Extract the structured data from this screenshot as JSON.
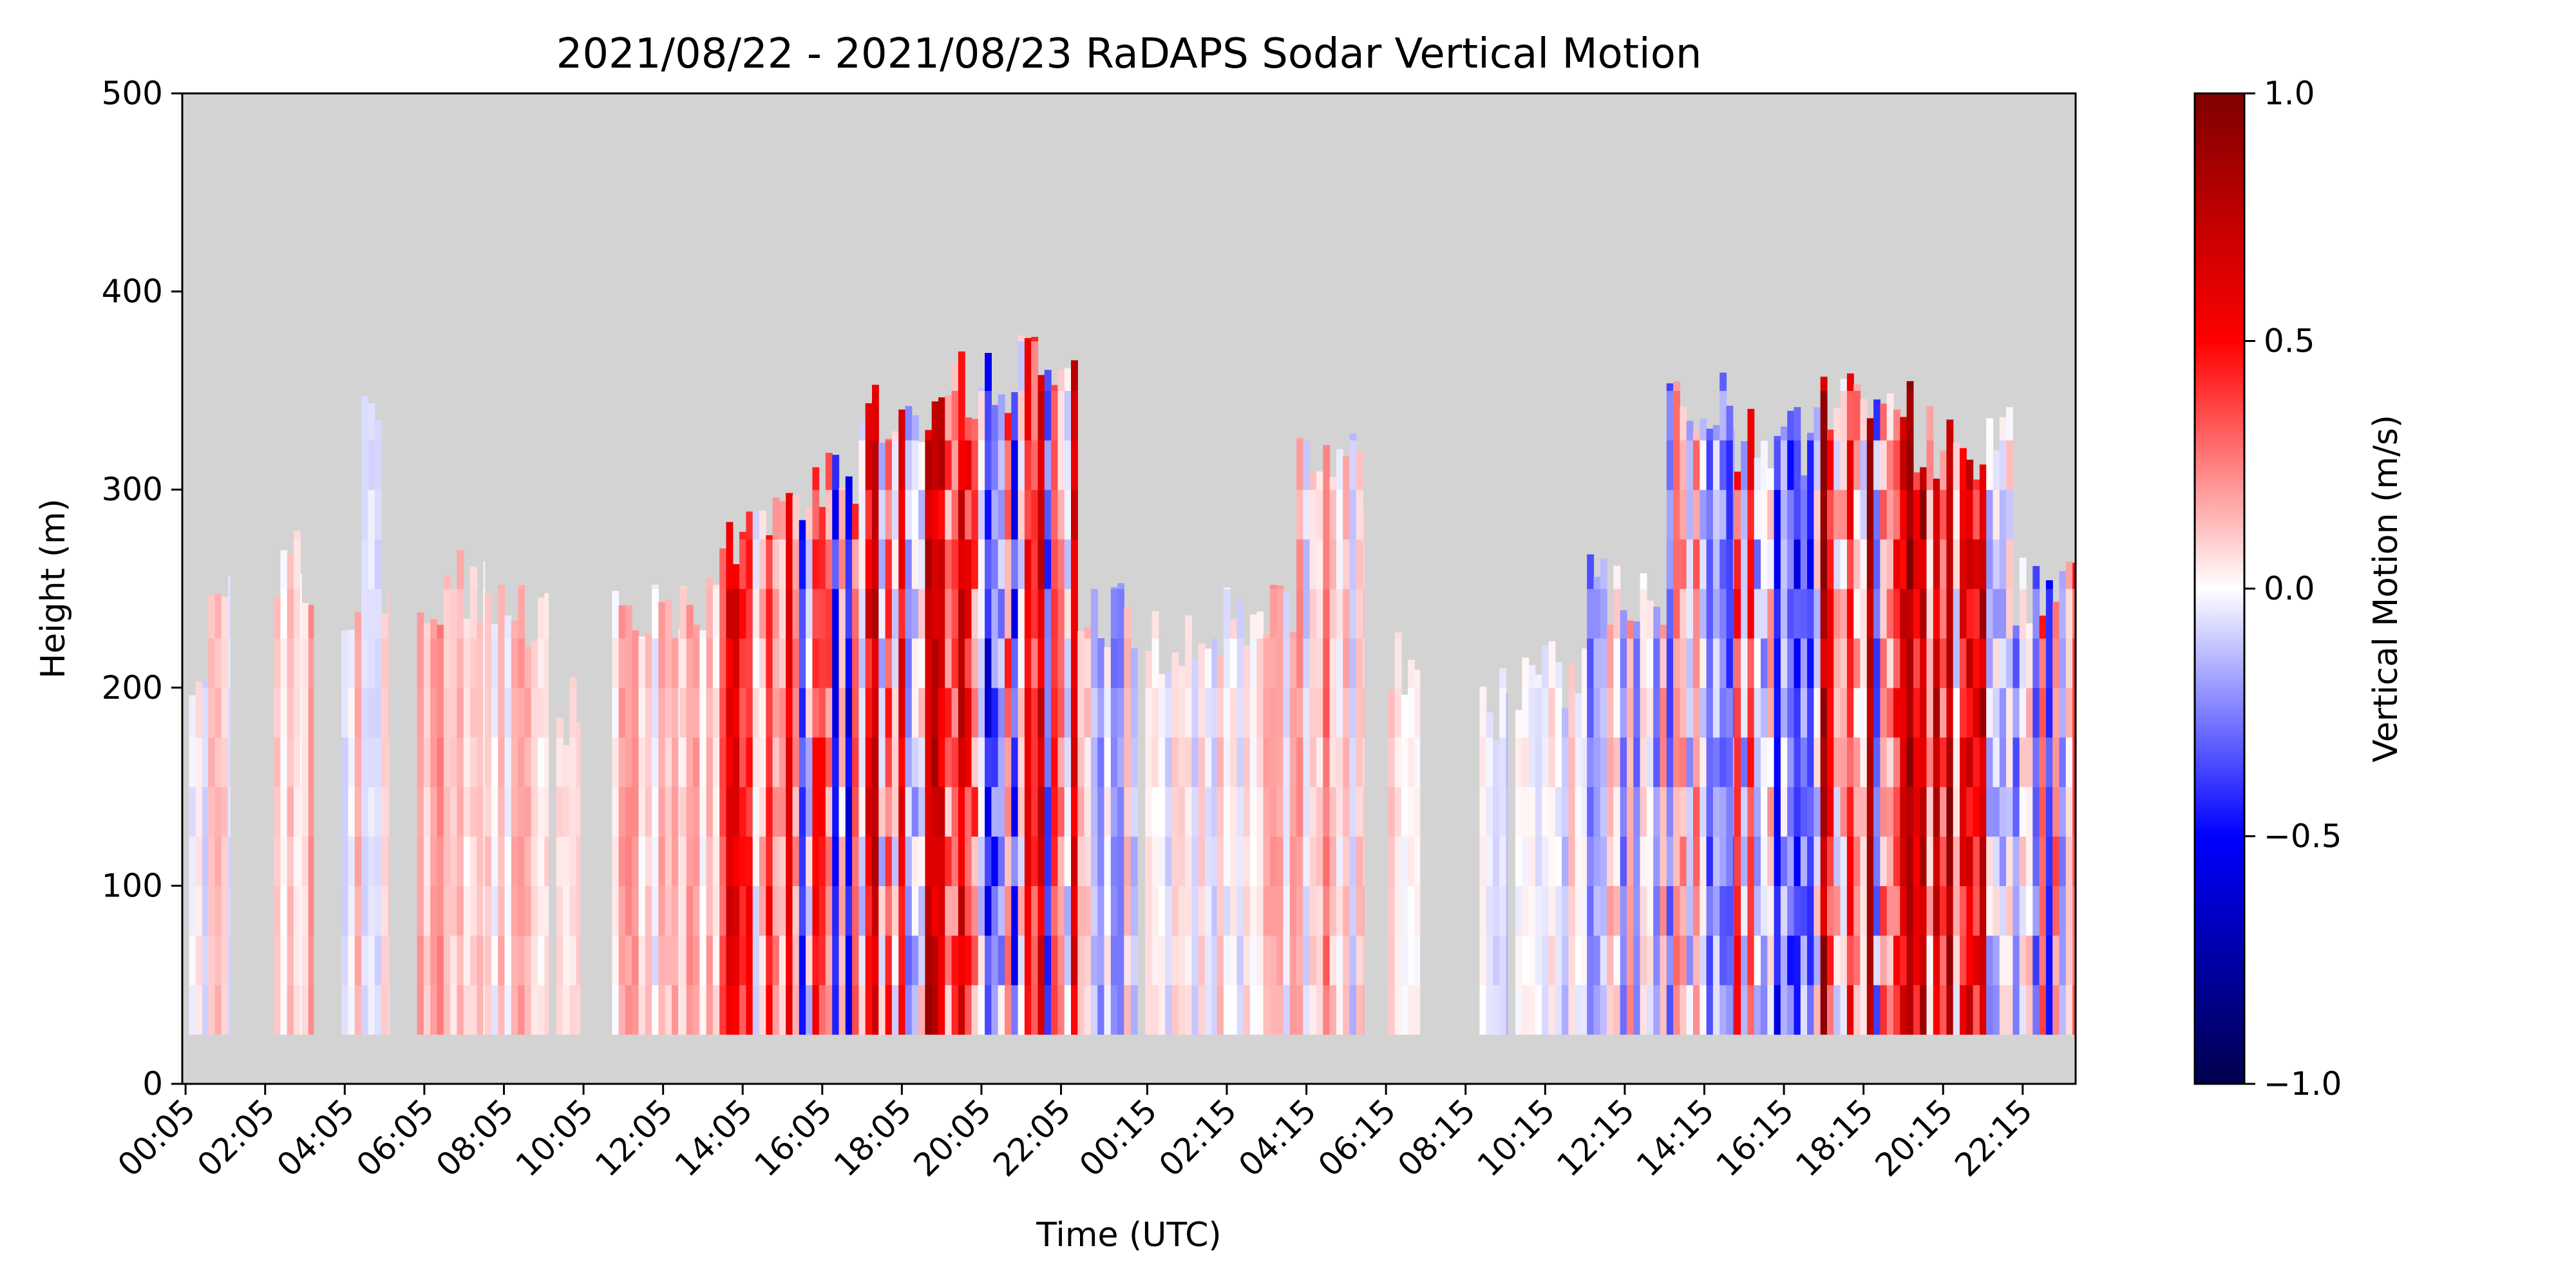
{
  "chart_data": {
    "type": "heatmap",
    "title": "2021/08/22 - 2021/08/23 RaDAPS Sodar Vertical Motion",
    "xlabel": "Time (UTC)",
    "ylabel": "Height (m)",
    "ylim": [
      0,
      500
    ],
    "yticks": [
      0,
      100,
      200,
      300,
      400,
      500
    ],
    "xticks": [
      "00:05",
      "02:05",
      "04:05",
      "06:05",
      "08:05",
      "10:05",
      "12:05",
      "14:05",
      "16:05",
      "18:05",
      "20:05",
      "22:05",
      "00:15",
      "02:15",
      "04:15",
      "06:15",
      "08:15",
      "10:15",
      "12:15",
      "14:15",
      "16:15",
      "18:15",
      "20:15",
      "22:15"
    ],
    "x_range_hours": [
      0,
      47.58
    ],
    "height_min": 25,
    "background_color": "#d3d3d3",
    "colorbar": {
      "label": "Vertical Motion (m/s)",
      "colormap": "seismic",
      "range": [
        -1.0,
        1.0
      ],
      "ticks": [
        -1.0,
        -0.5,
        0.0,
        0.5,
        1.0
      ],
      "tick_labels": [
        "−1.0",
        "−0.5",
        "0.0",
        "0.5",
        "1.0"
      ]
    },
    "profiles": [
      {
        "start": 0.17,
        "end": 0.65,
        "top": 190,
        "mean": 0.0,
        "amp": 0.12
      },
      {
        "start": 0.65,
        "end": 1.2,
        "top": 250,
        "mean": 0.05,
        "amp": 0.12
      },
      {
        "start": 2.3,
        "end": 3.0,
        "top": 265,
        "mean": 0.1,
        "amp": 0.1
      },
      {
        "start": 3.0,
        "end": 3.3,
        "top": 240,
        "mean": 0.12,
        "amp": 0.1
      },
      {
        "start": 4.0,
        "end": 4.5,
        "top": 235,
        "mean": 0.05,
        "amp": 0.12
      },
      {
        "start": 4.5,
        "end": 5.0,
        "top": 340,
        "mean": -0.02,
        "amp": 0.1
      },
      {
        "start": 5.0,
        "end": 5.2,
        "top": 235,
        "mean": 0.15,
        "amp": 0.08
      },
      {
        "start": 5.9,
        "end": 7.6,
        "top": 250,
        "mean": 0.12,
        "amp": 0.12
      },
      {
        "start": 7.6,
        "end": 9.2,
        "top": 235,
        "mean": 0.08,
        "amp": 0.12
      },
      {
        "start": 9.4,
        "end": 10.0,
        "top": 190,
        "mean": 0.08,
        "amp": 0.1
      },
      {
        "start": 10.8,
        "end": 12.5,
        "top": 235,
        "mean": 0.1,
        "amp": 0.15
      },
      {
        "start": 12.5,
        "end": 13.5,
        "top": 240,
        "mean": 0.12,
        "amp": 0.15
      },
      {
        "start": 13.5,
        "end": 15.5,
        "top": 280,
        "mean": 0.35,
        "amp": 0.35
      },
      {
        "start": 15.5,
        "end": 17.0,
        "top": 300,
        "mean": -0.05,
        "amp": 0.5
      },
      {
        "start": 17.0,
        "end": 19.0,
        "top": 340,
        "mean": 0.25,
        "amp": 0.55
      },
      {
        "start": 19.0,
        "end": 21.0,
        "top": 355,
        "mean": 0.1,
        "amp": 0.65
      },
      {
        "start": 21.0,
        "end": 22.5,
        "top": 370,
        "mean": 0.15,
        "amp": 0.5
      },
      {
        "start": 22.5,
        "end": 24.0,
        "top": 235,
        "mean": -0.05,
        "amp": 0.2
      },
      {
        "start": 24.2,
        "end": 26.0,
        "top": 220,
        "mean": -0.02,
        "amp": 0.12
      },
      {
        "start": 26.0,
        "end": 28.0,
        "top": 235,
        "mean": 0.08,
        "amp": 0.15
      },
      {
        "start": 28.0,
        "end": 29.7,
        "top": 310,
        "mean": 0.08,
        "amp": 0.2
      },
      {
        "start": 30.3,
        "end": 31.1,
        "top": 215,
        "mean": 0.05,
        "amp": 0.1
      },
      {
        "start": 32.6,
        "end": 33.3,
        "top": 190,
        "mean": -0.05,
        "amp": 0.1
      },
      {
        "start": 33.5,
        "end": 35.3,
        "top": 205,
        "mean": -0.05,
        "amp": 0.15
      },
      {
        "start": 35.3,
        "end": 37.3,
        "top": 250,
        "mean": -0.05,
        "amp": 0.25
      },
      {
        "start": 37.3,
        "end": 39.0,
        "top": 340,
        "mean": -0.15,
        "amp": 0.4
      },
      {
        "start": 39.0,
        "end": 41.0,
        "top": 325,
        "mean": 0.0,
        "amp": 0.55
      },
      {
        "start": 41.0,
        "end": 43.5,
        "top": 340,
        "mean": 0.35,
        "amp": 0.6
      },
      {
        "start": 43.5,
        "end": 46.0,
        "top": 325,
        "mean": 0.3,
        "amp": 0.6
      },
      {
        "start": 46.0,
        "end": 47.58,
        "top": 250,
        "mean": 0.0,
        "amp": 0.4
      }
    ]
  }
}
